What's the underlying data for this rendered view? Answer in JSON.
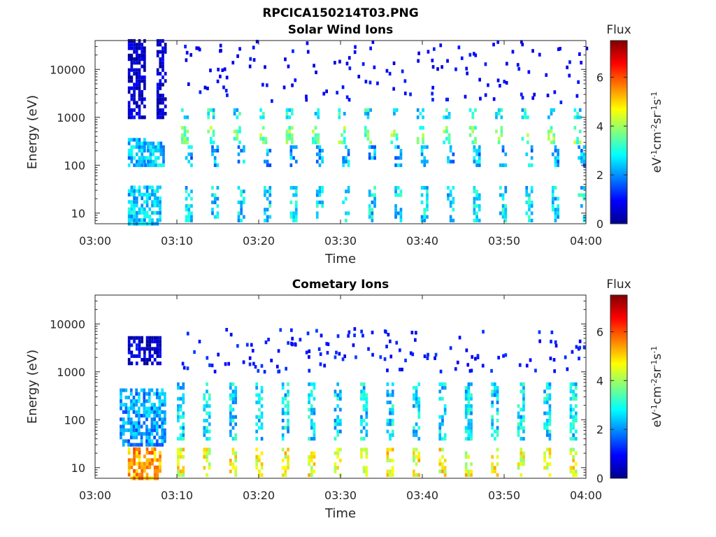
{
  "figure_title": "RPCICA150214T03.PNG",
  "colormap": [
    "#00008f",
    "#0000ff",
    "#0080ff",
    "#00ffff",
    "#80ff80",
    "#ffff00",
    "#ff8000",
    "#ff0000",
    "#800000"
  ],
  "chart_data": [
    {
      "type": "heatmap",
      "title": "Solar Wind Ions",
      "xlabel": "Time",
      "ylabel": "Energy (eV)",
      "xlim": [
        "03:00",
        "04:00"
      ],
      "x_tick_labels": [
        "03:00",
        "03:10",
        "03:20",
        "03:30",
        "03:40",
        "03:50",
        "04:00"
      ],
      "y_scale": "log",
      "ylim": [
        6,
        40000
      ],
      "y_tick_labels": [
        "10",
        "100",
        "1000",
        "10000"
      ],
      "y_tick_values": [
        10,
        100,
        1000,
        10000
      ],
      "colorbar": {
        "label": "Flux",
        "unit": "eV-1cm-2sr-1s-1",
        "range": [
          0,
          7.5
        ],
        "tick_labels": [
          "0",
          "2",
          "4",
          "6"
        ],
        "tick_values": [
          0,
          2,
          4,
          6
        ]
      },
      "grid": false,
      "features": [
        {
          "time_min": [
            4,
            6
          ],
          "energy_eV": [
            100,
            400
          ],
          "flux": 2.3
        },
        {
          "time_min": [
            4,
            6
          ],
          "energy_eV": [
            1000,
            40000
          ],
          "flux": 0.4
        },
        {
          "time_min": [
            6,
            8.5
          ],
          "energy_eV": [
            100,
            300
          ],
          "flux": 2.4
        },
        {
          "time_min": [
            7.5,
            8.5
          ],
          "energy_eV": [
            1000,
            40000
          ],
          "flux": 0.4
        },
        {
          "time_min": [
            4,
            8
          ],
          "energy_eV": [
            6,
            40
          ],
          "flux": 2.5
        },
        {
          "repeat_every_min": 3.2,
          "from_min": 10.5,
          "to_min": 60,
          "energy_eV": [
            300,
            700
          ],
          "flux": 3.6
        },
        {
          "repeat_every_min": 3.2,
          "from_min": 10.5,
          "to_min": 60,
          "energy_eV": [
            1000,
            1500
          ],
          "flux": 2.8
        },
        {
          "repeat_every_min": 3.2,
          "from_min": 11,
          "to_min": 60,
          "energy_eV": [
            100,
            250
          ],
          "flux": 2.2
        },
        {
          "repeat_every_min": 3.2,
          "from_min": 11,
          "to_min": 60,
          "energy_eV": [
            7,
            40
          ],
          "flux": 2.6
        },
        {
          "scatter": true,
          "time_min": [
            10,
            60
          ],
          "energy_eV": [
            2000,
            40000
          ],
          "flux": 0.6
        }
      ]
    },
    {
      "type": "heatmap",
      "title": "Cometary Ions",
      "xlabel": "Time",
      "ylabel": "Energy (eV)",
      "xlim": [
        "03:00",
        "04:00"
      ],
      "x_tick_labels": [
        "03:00",
        "03:10",
        "03:20",
        "03:30",
        "03:40",
        "03:50",
        "04:00"
      ],
      "y_scale": "log",
      "ylim": [
        6,
        40000
      ],
      "y_tick_labels": [
        "10",
        "100",
        "1000",
        "10000"
      ],
      "y_tick_values": [
        10,
        100,
        1000,
        10000
      ],
      "colorbar": {
        "label": "Flux",
        "unit": "eV-1cm-2sr-1s-1",
        "range": [
          0,
          7.5
        ],
        "tick_labels": [
          "0",
          "2",
          "4",
          "6"
        ],
        "tick_values": [
          0,
          2,
          4,
          6
        ]
      },
      "grid": false,
      "features": [
        {
          "time_min": [
            3,
            8.5
          ],
          "energy_eV": [
            30,
            450
          ],
          "flux": 2.1
        },
        {
          "time_min": [
            4,
            8
          ],
          "energy_eV": [
            6,
            25
          ],
          "flux": 5.4
        },
        {
          "time_min": [
            4,
            8
          ],
          "energy_eV": [
            1500,
            6000
          ],
          "flux": 0.5
        },
        {
          "repeat_every_min": 3.2,
          "from_min": 10,
          "to_min": 60,
          "energy_eV": [
            40,
            600
          ],
          "flux": 2.6
        },
        {
          "repeat_every_min": 3.2,
          "from_min": 10,
          "to_min": 60,
          "energy_eV": [
            7,
            25
          ],
          "flux": 4.6
        },
        {
          "scatter": true,
          "time_min": [
            10,
            60
          ],
          "energy_eV": [
            1000,
            8000
          ],
          "flux": 0.8
        }
      ]
    }
  ]
}
